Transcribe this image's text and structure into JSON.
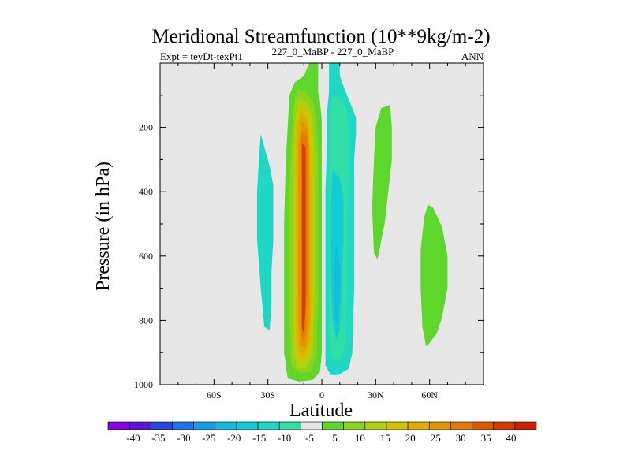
{
  "chart_data": {
    "type": "heatmap",
    "title": "Meridional Streamfunction (10**9kg/m-2)",
    "left_label": "Expt = teyDt-texPt1",
    "center_label": "227_0_MaBP - 227_0_MaBP",
    "right_label": "ANN",
    "xlabel": "Latitude",
    "ylabel": "Pressure (in hPa)",
    "xlim": [
      -90,
      90
    ],
    "ylim": [
      1000,
      0
    ],
    "xticks": [
      {
        "value": -60,
        "label": "60S"
      },
      {
        "value": -30,
        "label": "30S"
      },
      {
        "value": 0,
        "label": "0"
      },
      {
        "value": 30,
        "label": "30N"
      },
      {
        "value": 60,
        "label": "60N"
      }
    ],
    "yticks": [
      {
        "value": 200,
        "label": "200"
      },
      {
        "value": 400,
        "label": "400"
      },
      {
        "value": 600,
        "label": "600"
      },
      {
        "value": 800,
        "label": "800"
      },
      {
        "value": 1000,
        "label": "1000"
      }
    ],
    "missing_color": "#e6e6e6",
    "colorbar": {
      "colors": [
        "#8a00e6",
        "#5a16d6",
        "#2a46dc",
        "#1f74e4",
        "#129ee6",
        "#12bce0",
        "#12ccd6",
        "#1ed8c4",
        "#31dea6",
        "#e3e3e3",
        "#5fd62c",
        "#8cd41c",
        "#b3d00e",
        "#cfc403",
        "#ddae00",
        "#e39500",
        "#e47a00",
        "#de5a00",
        "#d83b00",
        "#cc2000"
      ],
      "labels": [
        "-40",
        "-35",
        "-30",
        "-25",
        "-20",
        "-15",
        "-10",
        "-5",
        "5",
        "10",
        "15",
        "20",
        "25",
        "30",
        "35",
        "40"
      ]
    },
    "contours": [
      {
        "level": "-5",
        "color": "#1ed8c4",
        "points": [
          [
            -34,
            220
          ],
          [
            -32,
            260
          ],
          [
            -29,
            320
          ],
          [
            -27,
            380
          ],
          [
            -27,
            450
          ],
          [
            -27,
            550
          ],
          [
            -28,
            650
          ],
          [
            -28,
            750
          ],
          [
            -29,
            830
          ],
          [
            -32,
            820
          ],
          [
            -34,
            700
          ],
          [
            -36,
            550
          ],
          [
            -36,
            400
          ],
          [
            -35,
            300
          ]
        ]
      },
      {
        "level": "5",
        "color": "#5fd62c",
        "points": [
          [
            -7,
            0
          ],
          [
            -2,
            0
          ],
          [
            -2,
            60
          ],
          [
            -2,
            90
          ],
          [
            -1,
            120
          ],
          [
            0,
            180
          ],
          [
            0,
            300
          ],
          [
            0,
            500
          ],
          [
            0,
            700
          ],
          [
            0,
            900
          ],
          [
            -1,
            960
          ],
          [
            -5,
            985
          ],
          [
            -13,
            990
          ],
          [
            -19,
            980
          ],
          [
            -21,
            900
          ],
          [
            -21,
            700
          ],
          [
            -21,
            500
          ],
          [
            -20,
            300
          ],
          [
            -19,
            200
          ],
          [
            -18,
            100
          ],
          [
            -15,
            60
          ],
          [
            -10,
            40
          ]
        ]
      },
      {
        "level": "10",
        "color": "#8cd41c",
        "points": [
          [
            -13,
            80
          ],
          [
            -9,
            90
          ],
          [
            -5,
            120
          ],
          [
            -3,
            170
          ],
          [
            -2,
            300
          ],
          [
            -2,
            500
          ],
          [
            -2,
            700
          ],
          [
            -3,
            900
          ],
          [
            -6,
            960
          ],
          [
            -12,
            965
          ],
          [
            -17,
            940
          ],
          [
            -18,
            800
          ],
          [
            -18,
            600
          ],
          [
            -18,
            400
          ],
          [
            -17,
            250
          ],
          [
            -16,
            160
          ],
          [
            -15,
            110
          ]
        ]
      },
      {
        "level": "15",
        "color": "#b3d00e",
        "points": [
          [
            -13,
            110
          ],
          [
            -8,
            125
          ],
          [
            -5,
            170
          ],
          [
            -4,
            300
          ],
          [
            -4,
            500
          ],
          [
            -4,
            700
          ],
          [
            -5,
            900
          ],
          [
            -9,
            950
          ],
          [
            -13,
            950
          ],
          [
            -16,
            900
          ],
          [
            -16,
            700
          ],
          [
            -16,
            500
          ],
          [
            -16,
            300
          ],
          [
            -15,
            170
          ]
        ]
      },
      {
        "level": "20",
        "color": "#cfc403",
        "points": [
          [
            -12,
            130
          ],
          [
            -8,
            150
          ],
          [
            -6,
            200
          ],
          [
            -5,
            350
          ],
          [
            -5,
            550
          ],
          [
            -5,
            750
          ],
          [
            -6,
            880
          ],
          [
            -10,
            935
          ],
          [
            -13,
            925
          ],
          [
            -15,
            850
          ],
          [
            -15,
            650
          ],
          [
            -15,
            450
          ],
          [
            -15,
            250
          ],
          [
            -14,
            170
          ]
        ]
      },
      {
        "level": "25",
        "color": "#ddae00",
        "points": [
          [
            -12,
            150
          ],
          [
            -8,
            170
          ],
          [
            -7,
            230
          ],
          [
            -6,
            400
          ],
          [
            -6,
            600
          ],
          [
            -6,
            780
          ],
          [
            -7,
            870
          ],
          [
            -10,
            915
          ],
          [
            -13,
            900
          ],
          [
            -14,
            820
          ],
          [
            -14,
            600
          ],
          [
            -14,
            400
          ],
          [
            -14,
            240
          ],
          [
            -13,
            180
          ]
        ]
      },
      {
        "level": "30",
        "color": "#e39500",
        "points": [
          [
            -11,
            180
          ],
          [
            -8,
            200
          ],
          [
            -7,
            260
          ],
          [
            -7,
            450
          ],
          [
            -7,
            650
          ],
          [
            -7,
            800
          ],
          [
            -9,
            885
          ],
          [
            -12,
            880
          ],
          [
            -13,
            800
          ],
          [
            -13,
            600
          ],
          [
            -13,
            400
          ],
          [
            -13,
            260
          ]
        ]
      },
      {
        "level": "35",
        "color": "#e47a00",
        "points": [
          [
            -11,
            210
          ],
          [
            -8,
            230
          ],
          [
            -8,
            300
          ],
          [
            -8,
            500
          ],
          [
            -8,
            700
          ],
          [
            -9,
            850
          ],
          [
            -11,
            860
          ],
          [
            -12,
            780
          ],
          [
            -12,
            550
          ],
          [
            -12,
            350
          ],
          [
            -12,
            260
          ]
        ]
      },
      {
        "level": "40",
        "color": "#d83b00",
        "points": [
          [
            -11,
            250
          ],
          [
            -9,
            260
          ],
          [
            -9,
            350
          ],
          [
            -9,
            550
          ],
          [
            -9,
            750
          ],
          [
            -10,
            840
          ],
          [
            -11,
            820
          ],
          [
            -11,
            650
          ],
          [
            -11,
            450
          ],
          [
            -11,
            320
          ]
        ]
      },
      {
        "level": "-5",
        "color": "#1ed8c4",
        "points": [
          [
            4,
            0
          ],
          [
            10,
            0
          ],
          [
            10,
            40
          ],
          [
            12,
            70
          ],
          [
            14,
            100
          ],
          [
            17,
            140
          ],
          [
            19,
            170
          ],
          [
            19,
            220
          ],
          [
            18,
            300
          ],
          [
            18,
            500
          ],
          [
            18,
            700
          ],
          [
            17,
            900
          ],
          [
            15,
            950
          ],
          [
            9,
            970
          ],
          [
            5,
            970
          ],
          [
            2,
            940
          ],
          [
            2,
            800
          ],
          [
            2,
            600
          ],
          [
            2,
            400
          ],
          [
            3,
            250
          ],
          [
            3,
            150
          ],
          [
            4,
            90
          ]
        ]
      },
      {
        "level": "-10",
        "color": "#31dea6",
        "points": [
          [
            6,
            100
          ],
          [
            11,
            110
          ],
          [
            14,
            150
          ],
          [
            15,
            220
          ],
          [
            15,
            350
          ],
          [
            14,
            500
          ],
          [
            14,
            700
          ],
          [
            13,
            880
          ],
          [
            10,
            925
          ],
          [
            6,
            920
          ],
          [
            4,
            850
          ],
          [
            4,
            600
          ],
          [
            4,
            400
          ],
          [
            5,
            250
          ],
          [
            5,
            150
          ]
        ]
      },
      {
        "level": "-15",
        "color": "#12ccd6",
        "points": [
          [
            6,
            330
          ],
          [
            10,
            360
          ],
          [
            12,
            420
          ],
          [
            12,
            550
          ],
          [
            11,
            700
          ],
          [
            10,
            830
          ],
          [
            8,
            860
          ],
          [
            6,
            800
          ],
          [
            5,
            650
          ],
          [
            5,
            450
          ]
        ]
      },
      {
        "level": "-20",
        "color": "#12bce0",
        "points": [
          [
            8,
            560
          ],
          [
            10,
            620
          ],
          [
            10,
            720
          ],
          [
            9,
            800
          ],
          [
            8,
            810
          ],
          [
            7,
            740
          ],
          [
            7,
            640
          ]
        ]
      },
      {
        "level": "5",
        "color": "#5fd62c",
        "points": [
          [
            33,
            140
          ],
          [
            38,
            130
          ],
          [
            39,
            200
          ],
          [
            39,
            300
          ],
          [
            37,
            400
          ],
          [
            35,
            500
          ],
          [
            31,
            610
          ],
          [
            29,
            590
          ],
          [
            28,
            450
          ],
          [
            29,
            300
          ],
          [
            30,
            200
          ]
        ]
      },
      {
        "level": "5",
        "color": "#5fd62c",
        "points": [
          [
            59,
            440
          ],
          [
            62,
            450
          ],
          [
            67,
            510
          ],
          [
            70,
            600
          ],
          [
            70,
            700
          ],
          [
            67,
            790
          ],
          [
            64,
            840
          ],
          [
            60,
            870
          ],
          [
            58,
            880
          ],
          [
            56,
            820
          ],
          [
            55,
            700
          ],
          [
            55,
            580
          ],
          [
            57,
            480
          ]
        ]
      }
    ]
  }
}
